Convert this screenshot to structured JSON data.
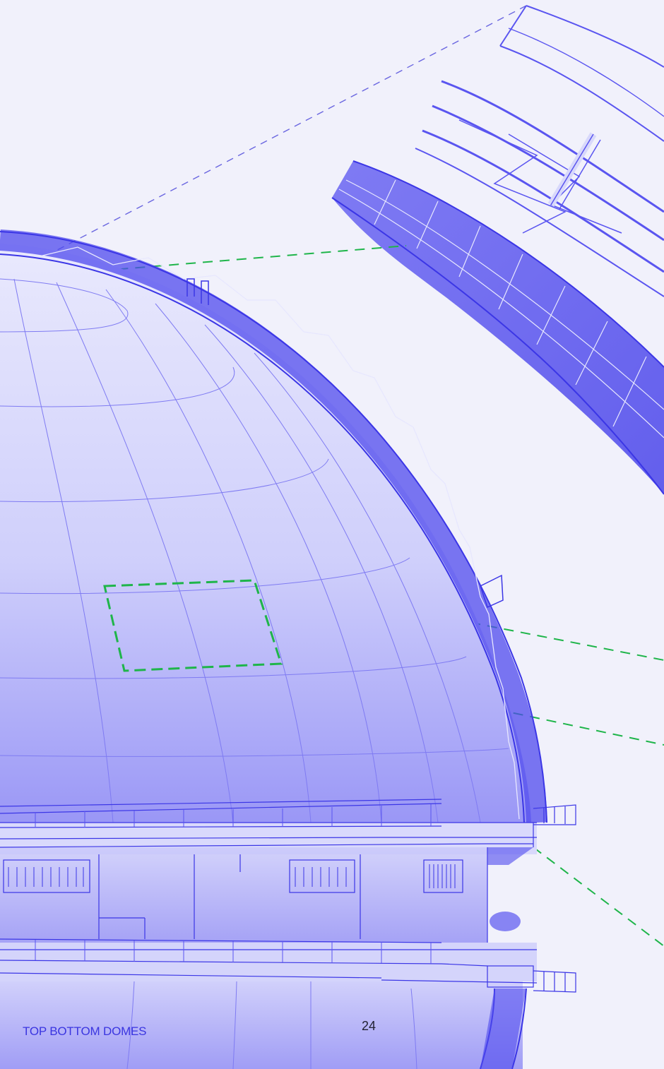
{
  "footer": {
    "title": "TOP BOTTOM DOMES",
    "page_number": "24"
  },
  "colors": {
    "background": "#f1f1fb",
    "structure": "#5a55f0",
    "structure_dark": "#3b36e6",
    "highlight_dashes": "#1fb54a",
    "guide_dashes": "#6a66e0",
    "dome_fill": "#c7c7fa"
  }
}
